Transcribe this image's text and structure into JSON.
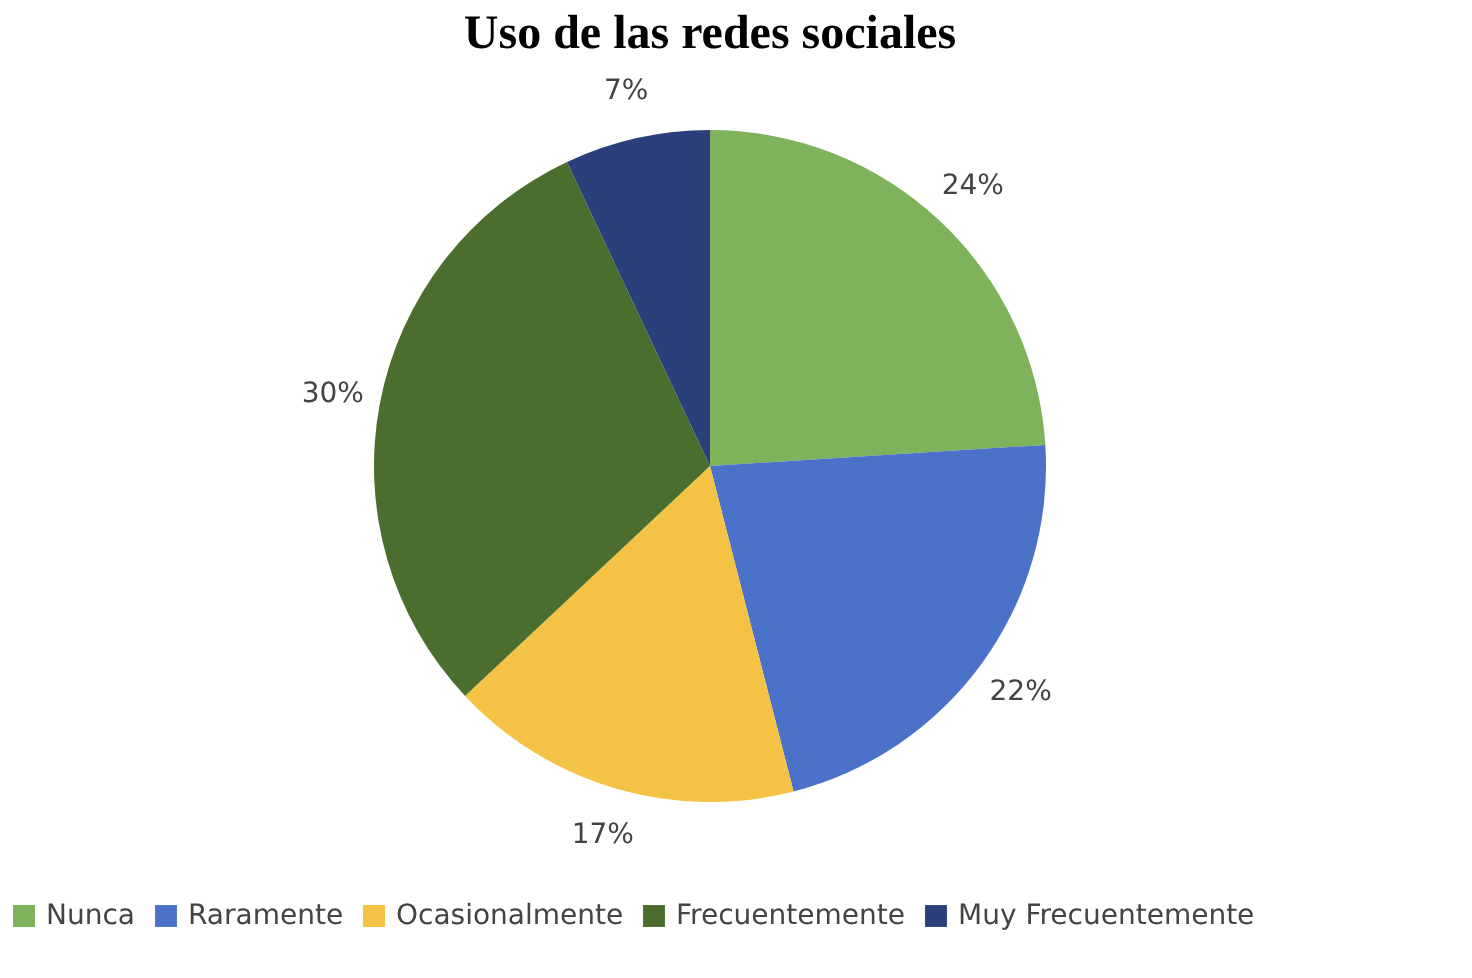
{
  "chart_data": {
    "type": "pie",
    "title": "Uso de las redes sociales",
    "categories": [
      "Nunca",
      "Raramente",
      "Ocasionalmente",
      "Frecuentemente",
      "Muy Frecuentemente"
    ],
    "values": [
      24,
      22,
      17,
      30,
      7
    ],
    "colors": [
      "#7eb35b",
      "#4b72c8",
      "#f4c244",
      "#4b6e2f",
      "#2b3f7b"
    ],
    "value_labels": [
      "24%",
      "22%",
      "17%",
      "30%",
      "7%"
    ],
    "legend": "bottom"
  }
}
